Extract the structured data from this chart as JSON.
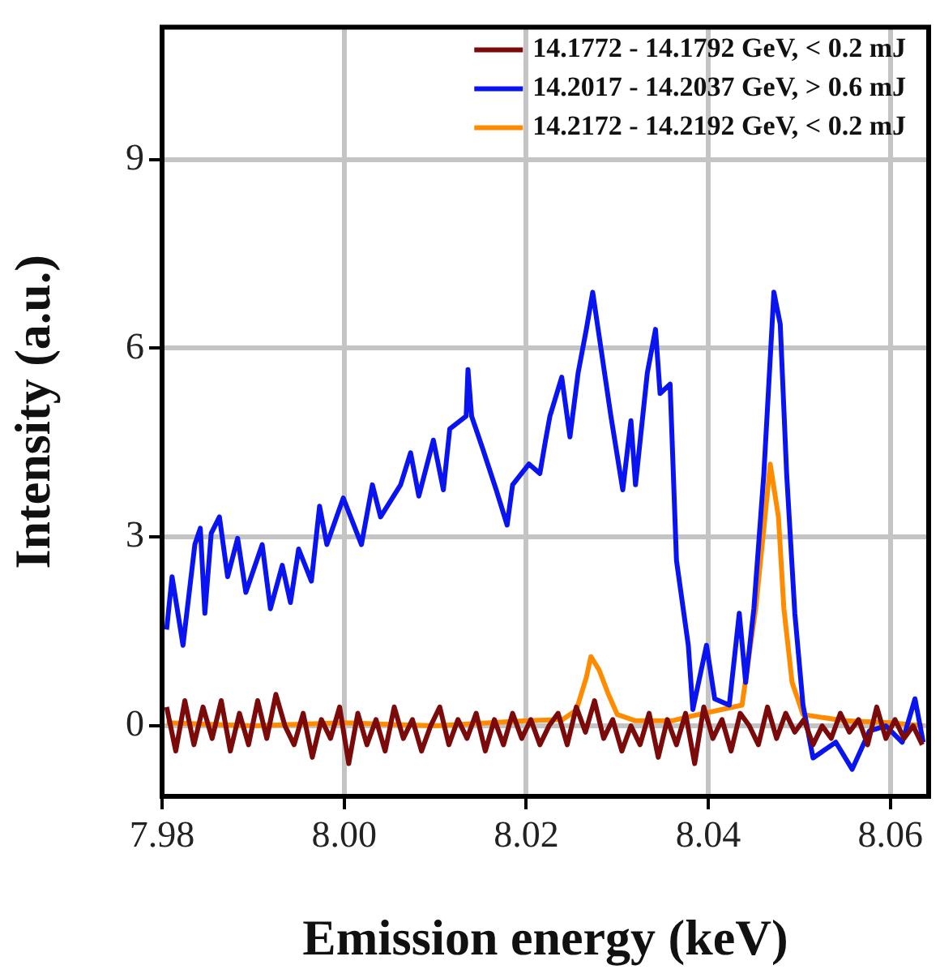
{
  "chart_data": {
    "type": "line",
    "xlabel": "Emission energy (keV)",
    "ylabel": "Intensity (a.u.)",
    "xlim": [
      7.98,
      8.0642
    ],
    "ylim": [
      -1.12,
      11.1
    ],
    "xticks": [
      7.98,
      {
        "value": 8,
        "label": "8.00"
      },
      8.02,
      8.04,
      8.06
    ],
    "yticks": [
      0,
      3,
      6,
      9
    ],
    "grid": true,
    "legend": "top right",
    "marker": "none",
    "line_style": "solid",
    "series": [
      {
        "name": "14.1772 - 14.1792 GeV, < 0.2 mJ",
        "color": "#7b0a0a",
        "x": [
          7.9805,
          7.9815,
          7.9825,
          7.9835,
          7.9845,
          7.9855,
          7.9865,
          7.9875,
          7.9885,
          7.9895,
          7.9905,
          7.9915,
          7.9925,
          7.9935,
          7.9945,
          7.9955,
          7.9965,
          7.9975,
          7.9985,
          7.9995,
          8.0005,
          8.0015,
          8.0025,
          8.0035,
          8.0045,
          8.0055,
          8.0065,
          8.0075,
          8.0085,
          8.0095,
          8.0105,
          8.0115,
          8.0125,
          8.0135,
          8.0145,
          8.0155,
          8.0165,
          8.0175,
          8.0185,
          8.0195,
          8.0205,
          8.0215,
          8.0225,
          8.0235,
          8.0245,
          8.0255,
          8.0265,
          8.0275,
          8.0285,
          8.0295,
          8.0305,
          8.0315,
          8.0325,
          8.0335,
          8.0345,
          8.0355,
          8.0365,
          8.0375,
          8.0385,
          8.0395,
          8.0405,
          8.0415,
          8.0425,
          8.0435,
          8.0445,
          8.0455,
          8.0465,
          8.0475,
          8.0485,
          8.0495,
          8.0505,
          8.0515,
          8.0525,
          8.0535,
          8.0545,
          8.0555,
          8.0565,
          8.0575,
          8.0585,
          8.0595,
          8.0605,
          8.0615,
          8.0625,
          8.0635
        ],
        "values": [
          0.3,
          -0.4,
          0.4,
          -0.3,
          0.3,
          -0.2,
          0.4,
          -0.4,
          0.2,
          -0.3,
          0.4,
          -0.2,
          0.5,
          0.0,
          -0.3,
          0.2,
          -0.5,
          0.1,
          -0.2,
          0.3,
          -0.6,
          0.2,
          -0.3,
          0.1,
          -0.4,
          0.3,
          -0.2,
          0.1,
          -0.4,
          0.0,
          0.3,
          -0.3,
          0.1,
          -0.2,
          0.2,
          -0.4,
          0.1,
          -0.3,
          0.2,
          -0.2,
          0.1,
          -0.3,
          0.0,
          0.2,
          -0.3,
          0.3,
          -0.1,
          0.4,
          -0.2,
          0.1,
          -0.4,
          0.0,
          -0.3,
          0.2,
          -0.5,
          0.1,
          -0.3,
          0.2,
          -0.6,
          0.3,
          -0.2,
          0.1,
          -0.4,
          0.2,
          0.0,
          -0.3,
          0.3,
          -0.2,
          0.2,
          -0.1,
          0.1,
          -0.3,
          0.0,
          -0.2,
          0.2,
          -0.1,
          0.1,
          -0.3,
          0.3,
          -0.2,
          0.1,
          -0.2,
          0.0,
          -0.3
        ]
      },
      {
        "name": "14.2017 - 14.2037 GeV, > 0.6 mJ",
        "color": "#0a14f0",
        "x": [
          7.9805,
          7.9811,
          7.9823,
          7.9836,
          7.9842,
          7.9847,
          7.9854,
          7.9863,
          7.9872,
          7.9883,
          7.9892,
          7.991,
          7.9919,
          7.9932,
          7.9941,
          7.995,
          7.9964,
          7.9973,
          7.9981,
          7.9999,
          8.0019,
          8.0031,
          8.004,
          8.0062,
          8.0073,
          8.0082,
          8.0098,
          8.0109,
          8.0116,
          8.0134,
          8.0136,
          8.014,
          8.0152,
          8.0167,
          8.0179,
          8.0185,
          8.0203,
          8.0215,
          8.0221,
          8.0226,
          8.0239,
          8.0248,
          8.0257,
          8.0266,
          8.0273,
          8.028,
          8.0293,
          8.0306,
          8.0315,
          8.032,
          8.0333,
          8.0342,
          8.0347,
          8.0358,
          8.0365,
          8.0378,
          8.0383,
          8.0398,
          8.0407,
          8.0423,
          8.0434,
          8.0441,
          8.045,
          8.0461,
          8.0472,
          8.0479,
          8.0486,
          8.0495,
          8.0504,
          8.0515,
          8.054,
          8.0558,
          8.0577,
          8.0595,
          8.0613,
          8.0627,
          8.0636
        ],
        "values": [
          1.53,
          2.37,
          1.28,
          2.88,
          3.14,
          1.79,
          3.06,
          3.32,
          2.37,
          2.98,
          2.12,
          2.88,
          1.86,
          2.55,
          1.96,
          2.81,
          2.3,
          3.49,
          2.88,
          3.62,
          2.88,
          3.83,
          3.32,
          3.83,
          4.34,
          3.65,
          4.54,
          3.75,
          4.72,
          4.92,
          5.66,
          4.92,
          4.41,
          3.75,
          3.19,
          3.83,
          4.16,
          4.01,
          4.52,
          4.92,
          5.54,
          4.59,
          5.61,
          6.3,
          6.89,
          6.2,
          4.92,
          3.75,
          4.85,
          3.83,
          5.61,
          6.3,
          5.28,
          5.43,
          2.63,
          1.28,
          0.26,
          1.28,
          0.43,
          0.33,
          1.79,
          0.69,
          1.86,
          4.01,
          6.89,
          6.38,
          4.01,
          1.79,
          0.33,
          -0.51,
          -0.26,
          -0.69,
          -0.08,
          0,
          -0.26,
          0.43,
          -0.26
        ]
      },
      {
        "name": "14.2172 - 14.2192 GeV, < 0.2 mJ",
        "color": "#ff8c00",
        "x": [
          7.9805,
          7.99,
          8.0,
          8.01,
          8.02,
          8.024,
          8.0255,
          8.0266,
          8.0271,
          8.028,
          8.029,
          8.03,
          8.032,
          8.036,
          8.038,
          8.0437,
          8.0452,
          8.0461,
          8.0468,
          8.0477,
          8.0483,
          8.0492,
          8.0504,
          8.055,
          8.06,
          8.0636
        ],
        "values": [
          0.05,
          0,
          0.05,
          0,
          0.08,
          0.1,
          0.25,
          0.77,
          1.1,
          0.89,
          0.51,
          0.18,
          0.08,
          0.08,
          0.15,
          0.33,
          1.86,
          3.14,
          4.16,
          3.32,
          1.86,
          0.69,
          0.18,
          0.08,
          0.05,
          0
        ]
      }
    ]
  }
}
